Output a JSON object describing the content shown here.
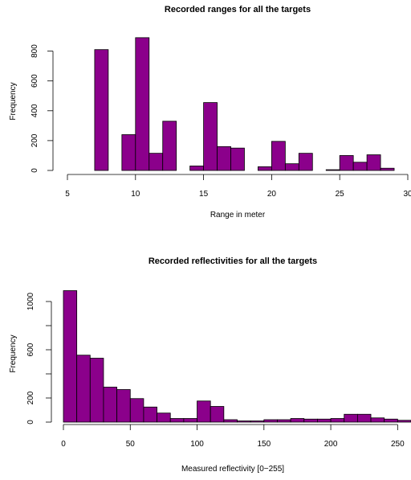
{
  "colors": {
    "bar_fill": "#8B008B",
    "bar_stroke": "#000000",
    "axis": "#000000",
    "background": "#ffffff"
  },
  "chart_data": [
    {
      "type": "bar",
      "title": "Recorded ranges for all the targets",
      "xlabel": "Range in meter",
      "ylabel": "Frequency",
      "xlim": [
        5,
        30
      ],
      "ylim": [
        0,
        900
      ],
      "x_ticks": [
        "5",
        "10",
        "15",
        "20",
        "25",
        "30"
      ],
      "x_tick_values": [
        5,
        10,
        15,
        20,
        25,
        30
      ],
      "y_ticks": [
        "0",
        "200",
        "400",
        "600",
        "800"
      ],
      "y_tick_values": [
        0,
        200,
        400,
        600,
        800
      ],
      "bin_width": 1,
      "bin_starts": [
        7,
        8,
        9,
        10,
        11,
        12,
        13,
        14,
        15,
        16,
        17,
        18,
        19,
        20,
        21,
        22,
        23,
        24,
        25,
        26,
        27,
        28
      ],
      "values": [
        810,
        0,
        240,
        890,
        115,
        330,
        0,
        30,
        455,
        160,
        150,
        0,
        25,
        195,
        45,
        115,
        0,
        5,
        100,
        55,
        105,
        15
      ]
    },
    {
      "type": "bar",
      "title": "Recorded reflectivities for all the targets",
      "xlabel": "Measured reflectivity [0−255]",
      "ylabel": "Frequency",
      "xlim": [
        0,
        260
      ],
      "ylim": [
        0,
        1100
      ],
      "x_ticks": [
        "0",
        "50",
        "100",
        "150",
        "200",
        "250"
      ],
      "x_tick_values": [
        0,
        50,
        100,
        150,
        200,
        250
      ],
      "y_ticks": [
        "0",
        "200",
        "600",
        "1000"
      ],
      "y_tick_values": [
        0,
        200,
        600,
        1000
      ],
      "y_minor_tick_values": [
        400,
        800
      ],
      "bin_width": 10,
      "bin_starts": [
        0,
        10,
        20,
        30,
        40,
        50,
        60,
        70,
        80,
        90,
        100,
        110,
        120,
        130,
        140,
        150,
        160,
        170,
        180,
        190,
        200,
        210,
        220,
        230,
        240,
        250
      ],
      "values": [
        1090,
        555,
        530,
        290,
        270,
        195,
        125,
        75,
        30,
        30,
        175,
        130,
        20,
        10,
        10,
        20,
        20,
        30,
        25,
        25,
        30,
        65,
        65,
        35,
        25,
        15
      ]
    }
  ]
}
